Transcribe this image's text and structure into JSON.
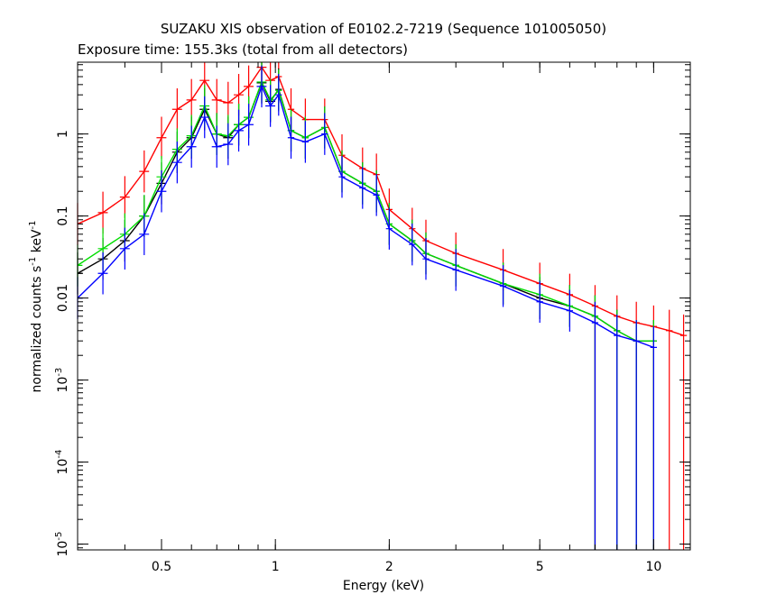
{
  "header": {
    "title": "SUZAKU XIS observation of E0102.2-7219 (Sequence 101005050)",
    "subtitle": "Exposure time: 155.3ks (total from all detectors)"
  },
  "chart_data": {
    "type": "scatter",
    "title": "SUZAKU XIS observation of E0102.2-7219 (Sequence 101005050)",
    "subtitle": "Exposure time: 155.3ks (total from all detectors)",
    "xlabel": "Energy (keV)",
    "ylabel_main": "normalized counts s",
    "ylabel_exp1": "-1",
    "ylabel_mid": " keV",
    "ylabel_exp2": "-1",
    "x_scale": "log",
    "y_scale": "log",
    "xlim": [
      0.3,
      12.5
    ],
    "ylim": [
      8.5e-06,
      7.5
    ],
    "x_ticks": [
      {
        "value": 0.5,
        "label": "0.5"
      },
      {
        "value": 1,
        "label": "1"
      },
      {
        "value": 2,
        "label": "2"
      },
      {
        "value": 5,
        "label": "5"
      },
      {
        "value": 10,
        "label": "10"
      }
    ],
    "y_ticks": [
      {
        "value": 1,
        "text": "1"
      },
      {
        "value": 0.1,
        "text": "0.1"
      },
      {
        "value": 0.01,
        "text": "0.01"
      },
      {
        "value": 0.001,
        "base": "10",
        "exp": "-3"
      },
      {
        "value": 0.0001,
        "base": "10",
        "exp": "-4"
      },
      {
        "value": 1e-05,
        "base": "10",
        "exp": "-5"
      }
    ],
    "grid": false,
    "legend": "none",
    "series": [
      {
        "color": "#ff0000",
        "x": [
          0.3,
          0.35,
          0.4,
          0.45,
          0.5,
          0.55,
          0.6,
          0.65,
          0.7,
          0.75,
          0.8,
          0.85,
          0.92,
          0.97,
          1.02,
          1.1,
          1.2,
          1.35,
          1.5,
          1.7,
          1.85,
          2.0,
          2.3,
          2.5,
          3.0,
          4.0,
          5.0,
          6.0,
          7.0,
          8.0,
          9.0,
          10.0,
          11.0,
          12.0
        ],
        "y": [
          0.08,
          0.11,
          0.17,
          0.35,
          0.9,
          2.0,
          2.6,
          4.5,
          2.6,
          2.4,
          3.0,
          3.8,
          6.5,
          4.5,
          5.0,
          2.0,
          1.5,
          1.5,
          0.55,
          0.38,
          0.32,
          0.12,
          0.07,
          0.05,
          0.035,
          0.022,
          0.015,
          0.011,
          0.008,
          0.006,
          0.005,
          0.0045,
          0.004,
          0.0035
        ]
      },
      {
        "color": "#000000",
        "x": [
          0.3,
          0.35,
          0.4,
          0.45,
          0.5,
          0.55,
          0.6,
          0.65,
          0.7,
          0.75,
          0.8,
          0.85,
          0.92,
          0.97,
          1.02,
          1.1,
          1.2,
          1.35,
          1.5,
          1.7,
          1.85,
          2.0,
          2.3,
          2.5,
          3.0,
          4.0,
          5.0,
          6.0,
          7.0,
          8.0,
          9.0,
          10.0
        ],
        "y": [
          0.02,
          0.03,
          0.05,
          0.1,
          0.25,
          0.6,
          0.9,
          2.0,
          1.0,
          0.9,
          1.3,
          1.6,
          4.2,
          2.5,
          3.5,
          1.1,
          0.9,
          1.2,
          0.35,
          0.25,
          0.2,
          0.08,
          0.05,
          0.035,
          0.025,
          0.015,
          0.01,
          0.008,
          0.006,
          0.004,
          0.003,
          0.003
        ]
      },
      {
        "color": "#00dd00",
        "x": [
          0.3,
          0.35,
          0.4,
          0.45,
          0.5,
          0.55,
          0.6,
          0.65,
          0.7,
          0.75,
          0.8,
          0.85,
          0.92,
          0.97,
          1.02,
          1.1,
          1.2,
          1.35,
          1.5,
          1.7,
          1.85,
          2.0,
          2.3,
          2.5,
          3.0,
          4.0,
          5.0,
          6.0,
          7.0,
          8.0,
          9.0,
          10.0
        ],
        "y": [
          0.025,
          0.04,
          0.06,
          0.1,
          0.3,
          0.65,
          0.95,
          2.2,
          1.0,
          0.95,
          1.3,
          1.6,
          4.3,
          2.6,
          3.4,
          1.1,
          0.9,
          1.2,
          0.35,
          0.25,
          0.2,
          0.08,
          0.05,
          0.035,
          0.025,
          0.015,
          0.011,
          0.008,
          0.006,
          0.004,
          0.003,
          0.003
        ]
      },
      {
        "color": "#0000ff",
        "x": [
          0.3,
          0.35,
          0.4,
          0.45,
          0.5,
          0.55,
          0.6,
          0.65,
          0.7,
          0.75,
          0.8,
          0.85,
          0.92,
          0.97,
          1.02,
          1.1,
          1.2,
          1.35,
          1.5,
          1.7,
          1.85,
          2.0,
          2.3,
          2.5,
          3.0,
          4.0,
          5.0,
          6.0,
          7.0,
          8.0,
          9.0,
          10.0
        ],
        "y": [
          0.01,
          0.02,
          0.04,
          0.06,
          0.2,
          0.45,
          0.7,
          1.6,
          0.7,
          0.75,
          1.1,
          1.3,
          3.8,
          2.2,
          3.0,
          0.9,
          0.8,
          1.0,
          0.3,
          0.22,
          0.18,
          0.07,
          0.045,
          0.03,
          0.022,
          0.014,
          0.009,
          0.007,
          0.005,
          0.0035,
          0.003,
          0.0025
        ]
      }
    ]
  }
}
